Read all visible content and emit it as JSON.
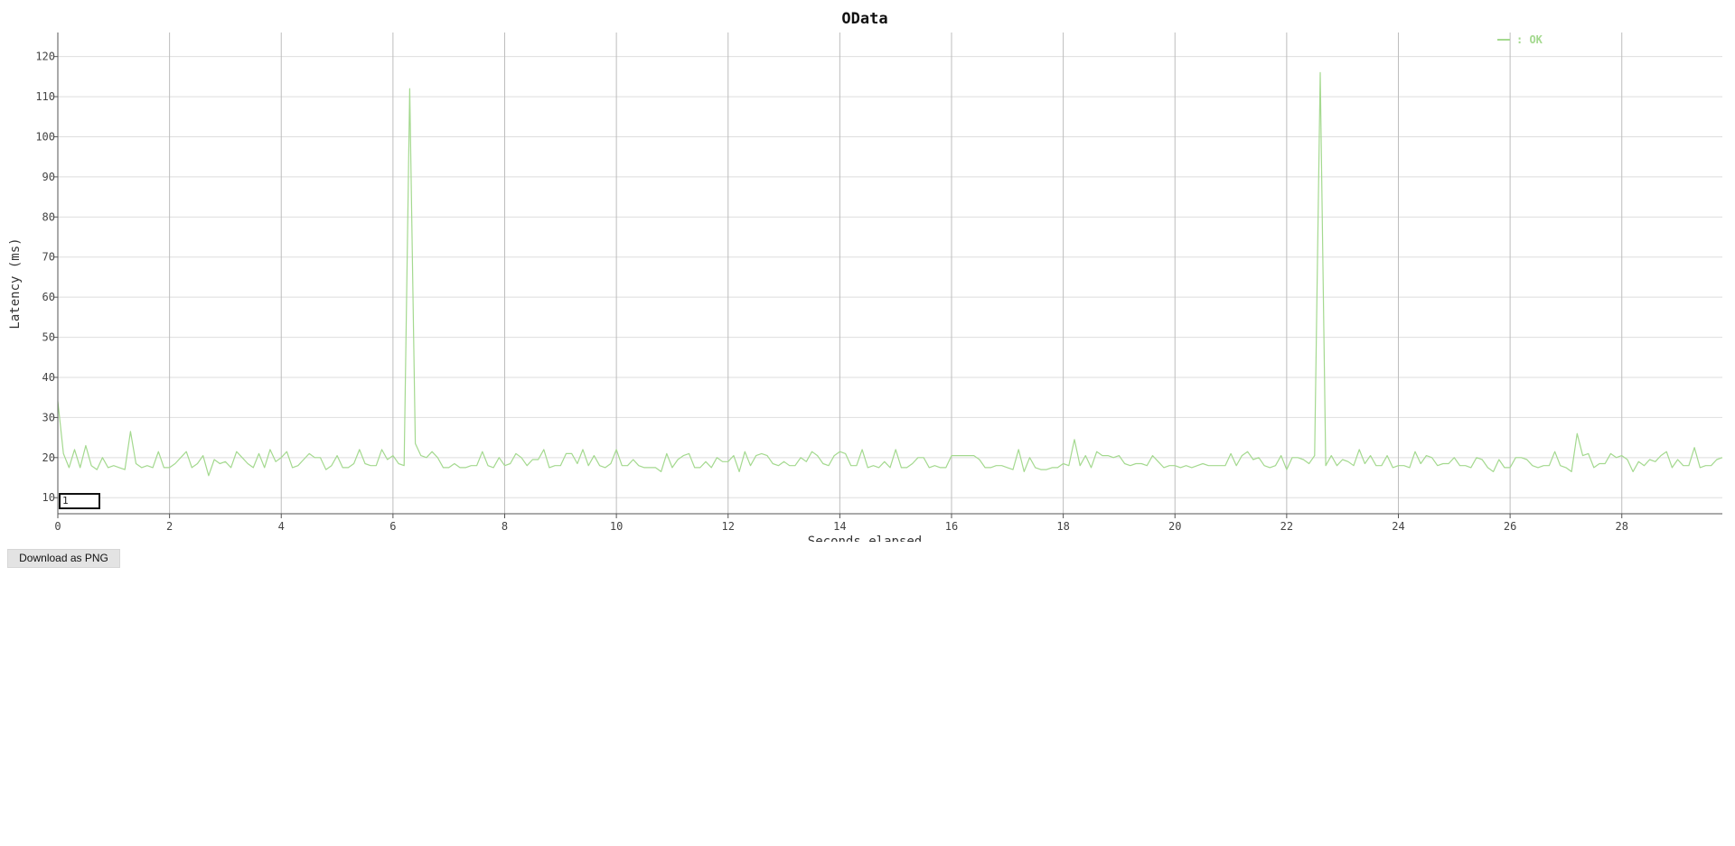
{
  "colors": {
    "series": "#a4d98f",
    "grid_h": "#dedede",
    "grid_v": "#bdbdbd",
    "axis": "#555555"
  },
  "download_label": "Download as PNG",
  "selection_value": "1",
  "chart_data": {
    "type": "line",
    "title": "OData",
    "xlabel": "Seconds elapsed",
    "ylabel": "Latency (ms)",
    "xlim": [
      0,
      29.8
    ],
    "ylim": [
      6,
      126
    ],
    "xticks": [
      0,
      2,
      4,
      6,
      8,
      10,
      12,
      14,
      16,
      18,
      20,
      22,
      24,
      26,
      28
    ],
    "yticks": [
      10,
      20,
      30,
      40,
      50,
      60,
      70,
      80,
      90,
      100,
      110,
      120
    ],
    "grid": true,
    "legend_position": "top-right",
    "legend_label": ": OK",
    "series": [
      {
        "name": "OK",
        "points": [
          [
            0,
            34
          ],
          [
            0.1,
            21
          ],
          [
            0.2,
            17.5
          ],
          [
            0.3,
            22
          ],
          [
            0.4,
            17.5
          ],
          [
            0.5,
            23
          ],
          [
            0.6,
            18
          ],
          [
            0.7,
            17
          ],
          [
            0.8,
            20
          ],
          [
            0.9,
            17.5
          ],
          [
            1.0,
            18
          ],
          [
            1.1,
            17.5
          ],
          [
            1.2,
            17
          ],
          [
            1.3,
            26.5
          ],
          [
            1.4,
            18.5
          ],
          [
            1.5,
            17.5
          ],
          [
            1.6,
            18
          ],
          [
            1.7,
            17.5
          ],
          [
            1.8,
            21.5
          ],
          [
            1.9,
            17.5
          ],
          [
            2.0,
            17.5
          ],
          [
            2.1,
            18.5
          ],
          [
            2.2,
            20
          ],
          [
            2.3,
            21.5
          ],
          [
            2.4,
            17.5
          ],
          [
            2.5,
            18.5
          ],
          [
            2.6,
            20.5
          ],
          [
            2.7,
            15.5
          ],
          [
            2.8,
            19.5
          ],
          [
            2.9,
            18.5
          ],
          [
            3.0,
            19
          ],
          [
            3.1,
            17.5
          ],
          [
            3.2,
            21.5
          ],
          [
            3.3,
            20
          ],
          [
            3.4,
            18.5
          ],
          [
            3.5,
            17.5
          ],
          [
            3.6,
            21
          ],
          [
            3.7,
            17.5
          ],
          [
            3.8,
            22
          ],
          [
            3.9,
            19
          ],
          [
            4.0,
            20
          ],
          [
            4.1,
            21.5
          ],
          [
            4.2,
            17.5
          ],
          [
            4.3,
            18
          ],
          [
            4.4,
            19.5
          ],
          [
            4.5,
            21
          ],
          [
            4.6,
            20
          ],
          [
            4.7,
            20
          ],
          [
            4.8,
            17
          ],
          [
            4.9,
            18
          ],
          [
            5.0,
            20.5
          ],
          [
            5.1,
            17.5
          ],
          [
            5.2,
            17.5
          ],
          [
            5.3,
            18.5
          ],
          [
            5.4,
            22
          ],
          [
            5.5,
            18.5
          ],
          [
            5.6,
            18
          ],
          [
            5.7,
            18
          ],
          [
            5.8,
            22
          ],
          [
            5.9,
            19.5
          ],
          [
            6.0,
            20.5
          ],
          [
            6.1,
            18.5
          ],
          [
            6.2,
            18
          ],
          [
            6.3,
            112
          ],
          [
            6.4,
            23.5
          ],
          [
            6.5,
            20.5
          ],
          [
            6.6,
            20
          ],
          [
            6.7,
            21.5
          ],
          [
            6.8,
            20
          ],
          [
            6.9,
            17.5
          ],
          [
            7.0,
            17.5
          ],
          [
            7.1,
            18.5
          ],
          [
            7.2,
            17.5
          ],
          [
            7.3,
            17.5
          ],
          [
            7.4,
            18
          ],
          [
            7.5,
            18
          ],
          [
            7.6,
            21.5
          ],
          [
            7.7,
            18
          ],
          [
            7.8,
            17.5
          ],
          [
            7.9,
            20
          ],
          [
            8.0,
            18
          ],
          [
            8.1,
            18.5
          ],
          [
            8.2,
            21
          ],
          [
            8.3,
            20
          ],
          [
            8.4,
            18
          ],
          [
            8.5,
            19.5
          ],
          [
            8.6,
            19.5
          ],
          [
            8.7,
            22
          ],
          [
            8.8,
            17.5
          ],
          [
            8.9,
            18
          ],
          [
            9.0,
            18
          ],
          [
            9.1,
            21
          ],
          [
            9.2,
            21
          ],
          [
            9.3,
            18.5
          ],
          [
            9.4,
            22
          ],
          [
            9.5,
            18
          ],
          [
            9.6,
            20.5
          ],
          [
            9.7,
            18
          ],
          [
            9.8,
            17.5
          ],
          [
            9.9,
            18.5
          ],
          [
            10.0,
            22
          ],
          [
            10.1,
            18
          ],
          [
            10.2,
            18
          ],
          [
            10.3,
            19.5
          ],
          [
            10.4,
            18
          ],
          [
            10.5,
            17.5
          ],
          [
            10.6,
            17.5
          ],
          [
            10.7,
            17.5
          ],
          [
            10.8,
            16.5
          ],
          [
            10.9,
            21
          ],
          [
            11.0,
            17.5
          ],
          [
            11.1,
            19.5
          ],
          [
            11.2,
            20.5
          ],
          [
            11.3,
            21
          ],
          [
            11.4,
            17.5
          ],
          [
            11.5,
            17.5
          ],
          [
            11.6,
            19
          ],
          [
            11.7,
            17.5
          ],
          [
            11.8,
            20
          ],
          [
            11.9,
            19
          ],
          [
            12.0,
            19
          ],
          [
            12.1,
            20.5
          ],
          [
            12.2,
            16.5
          ],
          [
            12.3,
            21.5
          ],
          [
            12.4,
            18
          ],
          [
            12.5,
            20.5
          ],
          [
            12.6,
            21
          ],
          [
            12.7,
            20.5
          ],
          [
            12.8,
            18.5
          ],
          [
            12.9,
            18
          ],
          [
            13.0,
            19
          ],
          [
            13.1,
            18
          ],
          [
            13.2,
            18
          ],
          [
            13.3,
            20
          ],
          [
            13.4,
            19
          ],
          [
            13.5,
            21.5
          ],
          [
            13.6,
            20.5
          ],
          [
            13.7,
            18.5
          ],
          [
            13.8,
            18
          ],
          [
            13.9,
            20.5
          ],
          [
            14.0,
            21.5
          ],
          [
            14.1,
            21
          ],
          [
            14.2,
            18
          ],
          [
            14.3,
            18
          ],
          [
            14.4,
            22
          ],
          [
            14.5,
            17.5
          ],
          [
            14.6,
            18
          ],
          [
            14.7,
            17.5
          ],
          [
            14.8,
            19
          ],
          [
            14.9,
            17.5
          ],
          [
            15.0,
            22
          ],
          [
            15.1,
            17.5
          ],
          [
            15.2,
            17.5
          ],
          [
            15.3,
            18.5
          ],
          [
            15.4,
            20
          ],
          [
            15.5,
            20
          ],
          [
            15.6,
            17.5
          ],
          [
            15.7,
            18
          ],
          [
            15.8,
            17.5
          ],
          [
            15.9,
            17.5
          ],
          [
            16.0,
            20.5
          ],
          [
            16.1,
            20.5
          ],
          [
            16.2,
            20.5
          ],
          [
            16.3,
            20.5
          ],
          [
            16.4,
            20.5
          ],
          [
            16.5,
            19.5
          ],
          [
            16.6,
            17.5
          ],
          [
            16.7,
            17.5
          ],
          [
            16.8,
            18
          ],
          [
            16.9,
            18
          ],
          [
            17.0,
            17.5
          ],
          [
            17.1,
            17
          ],
          [
            17.2,
            22
          ],
          [
            17.3,
            16.5
          ],
          [
            17.4,
            20
          ],
          [
            17.5,
            17.5
          ],
          [
            17.6,
            17
          ],
          [
            17.7,
            17
          ],
          [
            17.8,
            17.5
          ],
          [
            17.9,
            17.5
          ],
          [
            18.0,
            18.5
          ],
          [
            18.1,
            18
          ],
          [
            18.2,
            24.5
          ],
          [
            18.3,
            18
          ],
          [
            18.4,
            20.5
          ],
          [
            18.5,
            17.5
          ],
          [
            18.6,
            21.5
          ],
          [
            18.7,
            20.5
          ],
          [
            18.8,
            20.5
          ],
          [
            18.9,
            20
          ],
          [
            19.0,
            20.5
          ],
          [
            19.1,
            18.5
          ],
          [
            19.2,
            18
          ],
          [
            19.3,
            18.5
          ],
          [
            19.4,
            18.5
          ],
          [
            19.5,
            18
          ],
          [
            19.6,
            20.5
          ],
          [
            19.7,
            19
          ],
          [
            19.8,
            17.5
          ],
          [
            19.9,
            18
          ],
          [
            20.0,
            18
          ],
          [
            20.1,
            17.5
          ],
          [
            20.2,
            18
          ],
          [
            20.3,
            17.5
          ],
          [
            20.4,
            18
          ],
          [
            20.5,
            18.5
          ],
          [
            20.6,
            18
          ],
          [
            20.7,
            18
          ],
          [
            20.8,
            18
          ],
          [
            20.9,
            18
          ],
          [
            21.0,
            21
          ],
          [
            21.1,
            18
          ],
          [
            21.2,
            20.5
          ],
          [
            21.3,
            21.5
          ],
          [
            21.4,
            19.5
          ],
          [
            21.5,
            20
          ],
          [
            21.6,
            18
          ],
          [
            21.7,
            17.5
          ],
          [
            21.8,
            18
          ],
          [
            21.9,
            20.5
          ],
          [
            22.0,
            17
          ],
          [
            22.1,
            20
          ],
          [
            22.2,
            20
          ],
          [
            22.3,
            19.5
          ],
          [
            22.4,
            18.5
          ],
          [
            22.5,
            20.5
          ],
          [
            22.6,
            116
          ],
          [
            22.7,
            18
          ],
          [
            22.8,
            20.5
          ],
          [
            22.9,
            18
          ],
          [
            23.0,
            19.5
          ],
          [
            23.1,
            19
          ],
          [
            23.2,
            18
          ],
          [
            23.3,
            22
          ],
          [
            23.4,
            18.5
          ],
          [
            23.5,
            20.5
          ],
          [
            23.6,
            18
          ],
          [
            23.7,
            18
          ],
          [
            23.8,
            20.5
          ],
          [
            23.9,
            17.5
          ],
          [
            24.0,
            18
          ],
          [
            24.1,
            18
          ],
          [
            24.2,
            17.5
          ],
          [
            24.3,
            21.5
          ],
          [
            24.4,
            18.5
          ],
          [
            24.5,
            20.5
          ],
          [
            24.6,
            20
          ],
          [
            24.7,
            18
          ],
          [
            24.8,
            18.5
          ],
          [
            24.9,
            18.5
          ],
          [
            25.0,
            20
          ],
          [
            25.1,
            18
          ],
          [
            25.2,
            18
          ],
          [
            25.3,
            17.5
          ],
          [
            25.4,
            20
          ],
          [
            25.5,
            19.5
          ],
          [
            25.6,
            17.5
          ],
          [
            25.7,
            16.5
          ],
          [
            25.8,
            19.5
          ],
          [
            25.9,
            17.5
          ],
          [
            26.0,
            17.5
          ],
          [
            26.1,
            20
          ],
          [
            26.2,
            20
          ],
          [
            26.3,
            19.5
          ],
          [
            26.4,
            18
          ],
          [
            26.5,
            17.5
          ],
          [
            26.6,
            18
          ],
          [
            26.7,
            18
          ],
          [
            26.8,
            21.5
          ],
          [
            26.9,
            18
          ],
          [
            27.0,
            17.5
          ],
          [
            27.1,
            16.5
          ],
          [
            27.2,
            26
          ],
          [
            27.3,
            20.5
          ],
          [
            27.4,
            21
          ],
          [
            27.5,
            17.5
          ],
          [
            27.6,
            18.5
          ],
          [
            27.7,
            18.5
          ],
          [
            27.8,
            21
          ],
          [
            27.9,
            20
          ],
          [
            28.0,
            20.5
          ],
          [
            28.1,
            19.5
          ],
          [
            28.2,
            16.5
          ],
          [
            28.3,
            19
          ],
          [
            28.4,
            18
          ],
          [
            28.5,
            19.5
          ],
          [
            28.6,
            19
          ],
          [
            28.7,
            20.5
          ],
          [
            28.8,
            21.5
          ],
          [
            28.9,
            17.5
          ],
          [
            29.0,
            19.5
          ],
          [
            29.1,
            18
          ],
          [
            29.2,
            18
          ],
          [
            29.3,
            22.5
          ],
          [
            29.4,
            17.5
          ],
          [
            29.5,
            18
          ],
          [
            29.6,
            18
          ],
          [
            29.7,
            19.5
          ],
          [
            29.8,
            20
          ]
        ]
      }
    ]
  }
}
